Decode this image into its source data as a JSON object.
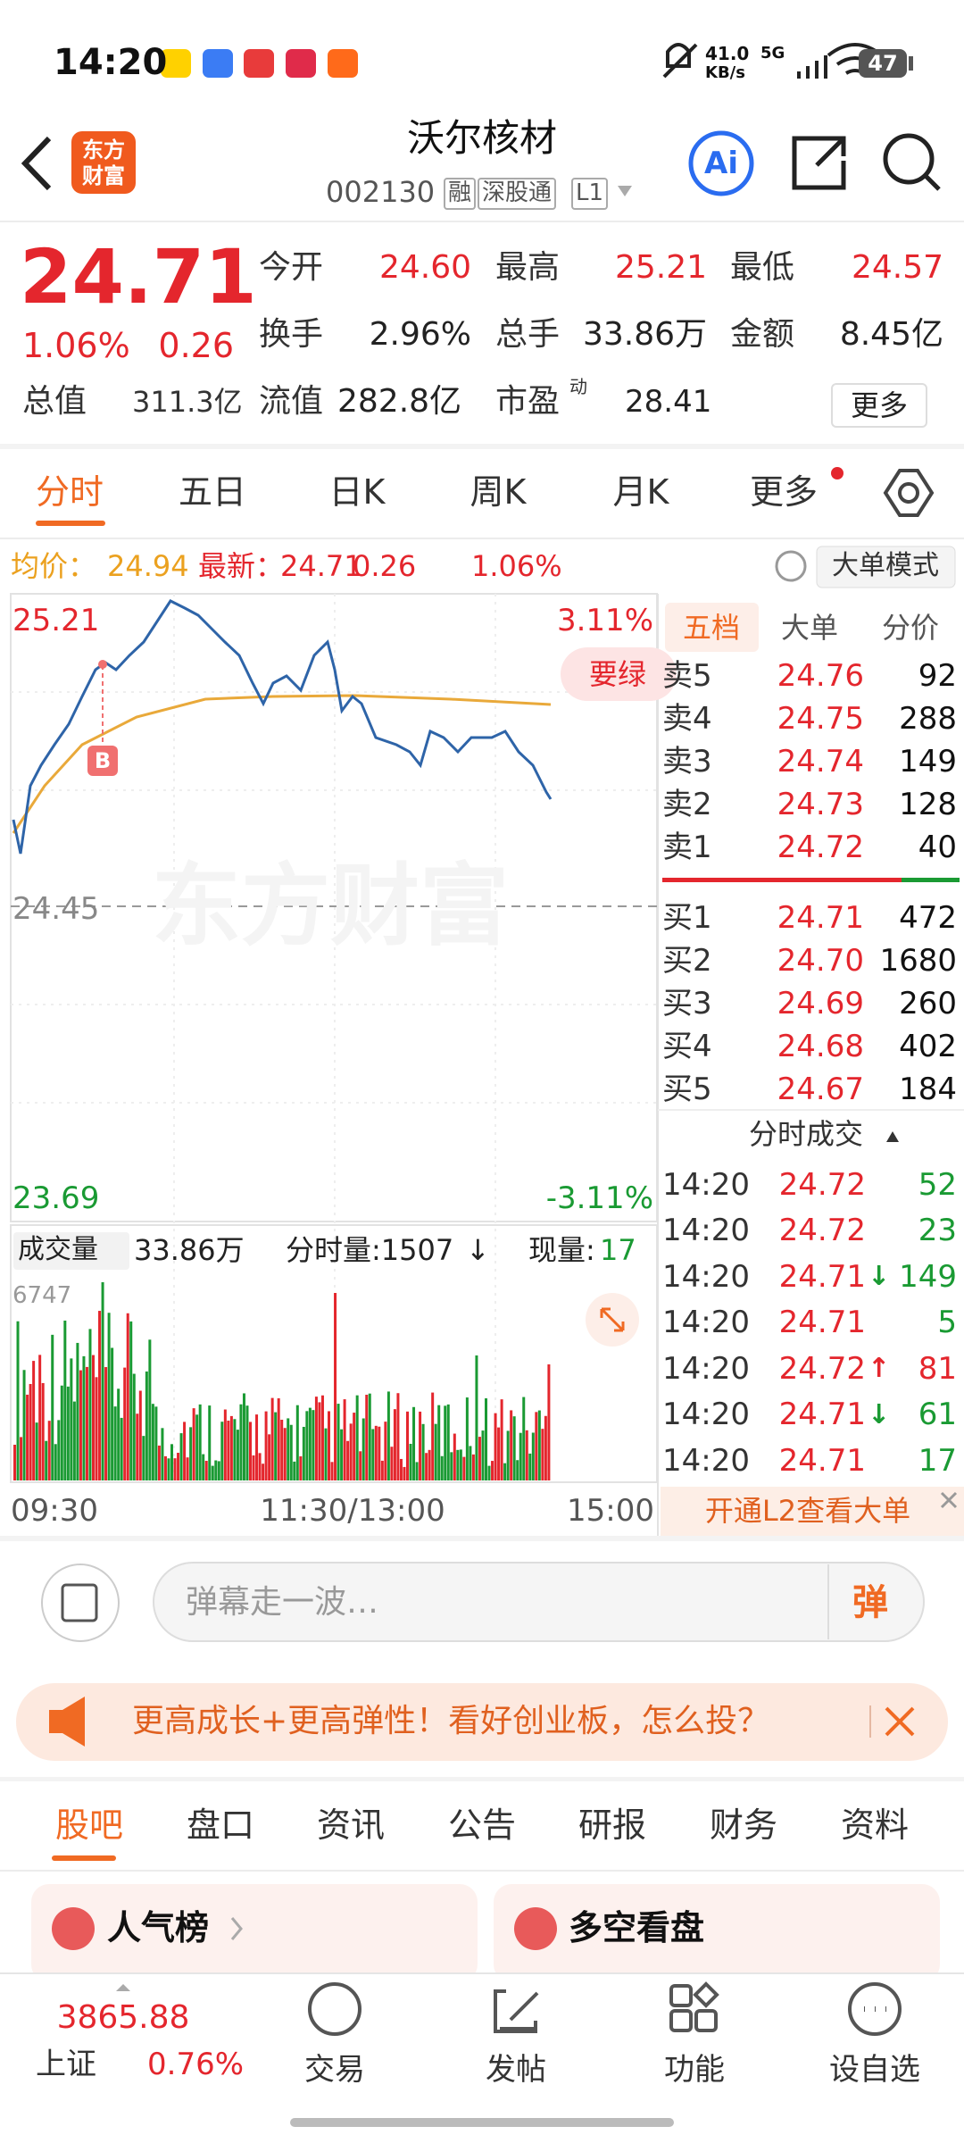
{
  "status": {
    "time": "14:20",
    "speed": "41.0",
    "speed_unit": "KB/s",
    "network": "5G",
    "battery": "47"
  },
  "header": {
    "logo": [
      "东方",
      "财富"
    ],
    "title": "沃尔核材",
    "code": "002130",
    "tags": [
      "融",
      "深股通",
      "L1"
    ],
    "ai": "Ai"
  },
  "colors": {
    "up": "#e4262d",
    "down": "#1a9a33",
    "accent": "#f06a23",
    "avg": "#eba11f"
  },
  "quote": {
    "price": "24.71",
    "change_pct": "1.06%",
    "change": "0.26",
    "total_value_label": "总值",
    "total_value": "311.3亿",
    "fields": [
      {
        "label": "今开",
        "value": "24.60"
      },
      {
        "label": "最高",
        "value": "25.21"
      },
      {
        "label": "最低",
        "value": "24.57"
      },
      {
        "label": "换手",
        "value": "2.96%"
      },
      {
        "label": "总手",
        "value": "33.86万"
      },
      {
        "label": "金额",
        "value": "8.45亿"
      }
    ],
    "float_label": "流值",
    "float_value": "282.8亿",
    "pe_label": "市盈",
    "pe_sup": "动",
    "pe_value": "28.41",
    "more": "更多"
  },
  "tabs": [
    "分时",
    "五日",
    "日K",
    "周K",
    "月K",
    "更多"
  ],
  "info": {
    "avg_label": "均价：",
    "avg": "24.94",
    "latest_label": "最新：",
    "latest": "24.71",
    "change": "0.26",
    "pct": "1.06%",
    "mode": "大单模式"
  },
  "chart": {
    "high": "25.21",
    "high_pct": "3.11%",
    "mid": "24.45",
    "low": "23.69",
    "low_pct": "-3.11%",
    "badge": "要绿",
    "marker": "B",
    "watermark": "东方财富",
    "volume": {
      "label": "成交量",
      "total": "33.86万",
      "period": "分时量:1507",
      "period_arrow": "↓",
      "current_label": "现量:",
      "current": "17",
      "max": "6747"
    },
    "times": [
      "09:30",
      "11:30/13:00",
      "15:00"
    ]
  },
  "orderbook": {
    "tabs": [
      "五档",
      "大单",
      "分价"
    ],
    "asks": [
      [
        "卖5",
        "24.76",
        "92"
      ],
      [
        "卖4",
        "24.75",
        "288"
      ],
      [
        "卖3",
        "24.74",
        "149"
      ],
      [
        "卖2",
        "24.73",
        "128"
      ],
      [
        "卖1",
        "24.72",
        "40"
      ]
    ],
    "bids": [
      [
        "买1",
        "24.71",
        "472"
      ],
      [
        "买2",
        "24.70",
        "1680"
      ],
      [
        "买3",
        "24.69",
        "260"
      ],
      [
        "买4",
        "24.68",
        "402"
      ],
      [
        "买5",
        "24.67",
        "184"
      ]
    ],
    "trades_title": "分时成交",
    "trades": [
      {
        "time": "14:20",
        "price": "24.72",
        "volume": "52",
        "color": "#1a9a33"
      },
      {
        "time": "14:20",
        "price": "24.72",
        "volume": "23",
        "color": "#1a9a33"
      },
      {
        "time": "14:20",
        "price": "24.71",
        "arrow": "↓",
        "volume": "149",
        "color": "#1a9a33"
      },
      {
        "time": "14:20",
        "price": "24.71",
        "volume": "5",
        "color": "#1a9a33"
      },
      {
        "time": "14:20",
        "price": "24.72",
        "arrow": "↑",
        "volume": "81",
        "color": "#e4262d"
      },
      {
        "time": "14:20",
        "price": "24.71",
        "arrow": "↓",
        "volume": "61",
        "color": "#1a9a33"
      },
      {
        "time": "14:20",
        "price": "24.71",
        "volume": "17",
        "color": "#1a9a33"
      }
    ],
    "l2": "开通L2查看大单"
  },
  "comment": {
    "placeholder": "弹幕走一波…",
    "danmu": "弹"
  },
  "banner": "更高成长+更高弹性！看好创业板，怎么投？",
  "section_tabs": [
    "股吧",
    "盘口",
    "资讯",
    "公告",
    "研报",
    "财务",
    "资料"
  ],
  "cards": [
    "人气榜",
    "多空看盘"
  ],
  "nav": {
    "index_value": "3865.88",
    "index_name": "上证",
    "index_pct": "0.76%",
    "items": [
      "交易",
      "发帖",
      "功能",
      "设自选"
    ]
  }
}
